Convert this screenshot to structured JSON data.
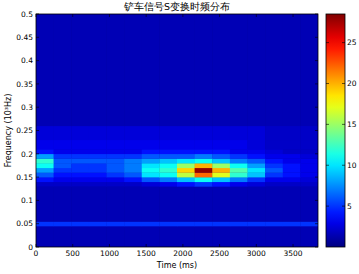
{
  "chart_data": {
    "type": "heatmap",
    "title": "铲车信号S变换时频分布",
    "x_label": "Time (ms)",
    "y_label": "Frequency (10³Hz)",
    "color": "jet",
    "xlim": [
      0,
      3840
    ],
    "ylim": [
      0,
      0.5
    ],
    "xticks": [
      0,
      500,
      1000,
      1500,
      2000,
      2500,
      3000,
      3500
    ],
    "yticks": [
      0,
      0.05,
      0.1,
      0.15,
      0.2,
      0.25,
      0.3,
      0.35,
      0.4,
      0.45,
      0.5
    ],
    "x_edges": [
      0,
      240,
      480,
      720,
      960,
      1200,
      1440,
      1680,
      1920,
      2160,
      2400,
      2640,
      2880,
      3120,
      3360,
      3600,
      3840
    ],
    "y_edges": [
      0,
      0.045,
      0.055,
      0.13,
      0.14,
      0.15,
      0.16,
      0.17,
      0.18,
      0.19,
      0.2,
      0.21,
      0.23,
      0.26,
      0.5
    ],
    "z": [
      [
        1.5,
        1.5,
        1.5,
        1.5,
        1.5,
        1.5,
        1.5,
        1.5,
        1.5,
        1.5,
        1.5,
        1.5,
        1.5,
        1.5,
        1.5,
        1.5
      ],
      [
        5,
        5,
        5,
        5,
        5,
        5,
        5,
        5,
        5,
        5,
        5,
        5,
        5,
        5,
        5,
        5
      ],
      [
        1.5,
        1.5,
        1.5,
        1.5,
        1.5,
        1.5,
        1.5,
        1.5,
        1.5,
        1.5,
        1.5,
        1.5,
        1.5,
        1.5,
        1.5,
        1.5
      ],
      [
        2,
        2,
        2,
        2,
        2,
        2,
        2.5,
        3,
        4,
        5,
        4,
        3,
        2.5,
        2,
        2,
        2
      ],
      [
        4,
        3,
        3,
        3,
        3,
        4,
        6,
        7,
        9,
        11,
        9,
        7,
        5,
        3,
        3,
        2.5
      ],
      [
        6,
        4,
        4,
        4,
        5,
        6,
        10,
        11,
        16,
        22,
        17,
        12,
        9,
        5,
        4,
        3
      ],
      [
        8,
        5,
        5,
        5,
        6,
        7,
        11,
        12,
        19,
        28,
        20,
        13,
        10,
        6,
        4,
        3
      ],
      [
        11,
        6,
        5,
        5,
        6,
        7,
        10,
        11,
        15,
        20,
        15,
        11,
        8,
        5,
        4,
        3
      ],
      [
        12,
        6,
        6,
        6,
        6,
        7,
        8,
        9,
        10,
        11,
        9,
        7,
        6,
        4,
        3,
        3
      ],
      [
        8,
        5,
        5,
        5,
        5,
        5,
        6,
        6,
        6,
        7,
        6,
        5,
        4,
        3,
        3,
        2.5
      ],
      [
        4,
        3,
        3,
        3,
        3,
        3,
        4,
        4,
        4,
        4,
        4,
        3,
        3,
        2.5,
        2,
        2
      ],
      [
        3,
        3,
        3,
        3,
        3,
        3,
        3,
        3,
        3,
        3,
        3,
        3,
        2.5,
        2,
        2,
        2
      ],
      [
        2.5,
        2.5,
        2.5,
        2.5,
        2.5,
        2.5,
        2.5,
        2.5,
        2.5,
        2.5,
        2.5,
        2.5,
        2.5,
        2,
        2,
        2
      ],
      [
        1.5,
        1.5,
        1.5,
        1.5,
        1.5,
        1.5,
        1.5,
        1.5,
        1.5,
        1.5,
        1.5,
        1.5,
        1.5,
        1.5,
        1.5,
        1.5
      ]
    ],
    "colorbar_range": [
      0,
      28.5
    ],
    "colorbar_ticks": [
      5,
      10,
      15,
      20,
      25
    ]
  }
}
